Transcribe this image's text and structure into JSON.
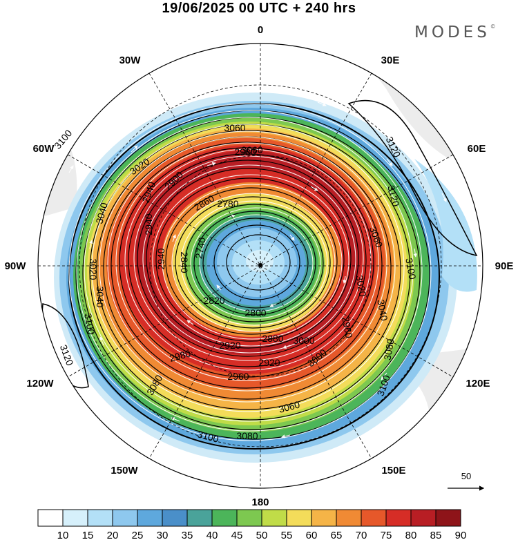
{
  "title": "19/06/2025  00 UTC  + 240 hrs",
  "brand": "MODES",
  "brand_mark": "©",
  "longitude_labels": {
    "top": "0",
    "bottom": "180",
    "lon30w": "30W",
    "lon30e": "30E",
    "lon60w": "60W",
    "lon60e": "60E",
    "lon90w": "90W",
    "lon90e": "90E",
    "lon120w": "120W",
    "lon120e": "120E",
    "lon150w": "150W",
    "lon150e": "150E"
  },
  "contour_labels": [
    "3100",
    "3060",
    "3020",
    "2980",
    "2940",
    "3060",
    "3040",
    "3020",
    "2940",
    "2900",
    "2860",
    "2780",
    "2740",
    "2840",
    "2940",
    "2820",
    "2800",
    "3120",
    "3060",
    "3100",
    "3040",
    "3020",
    "2960",
    "2920",
    "2880",
    "2980",
    "2920",
    "2960",
    "3000",
    "3000",
    "3060",
    "3080",
    "3100",
    "3100",
    "3120",
    "3080",
    "3040",
    "3080",
    "3100",
    "3120"
  ],
  "colorbar": {
    "ticks": [
      "10",
      "15",
      "20",
      "25",
      "30",
      "35",
      "40",
      "45",
      "50",
      "55",
      "60",
      "65",
      "70",
      "75",
      "80",
      "85",
      "90"
    ],
    "colors": [
      "#ffffff",
      "#d6f0fb",
      "#b3e0f7",
      "#8ec8ee",
      "#5ea8dd",
      "#4a8fc9",
      "#4aa39a",
      "#4cb55a",
      "#7dc850",
      "#c0dc48",
      "#f3dc5a",
      "#f5b447",
      "#f08a34",
      "#e6582a",
      "#d62d26",
      "#b81e24",
      "#8e1419"
    ]
  },
  "reference_vector": {
    "label": "50"
  }
}
